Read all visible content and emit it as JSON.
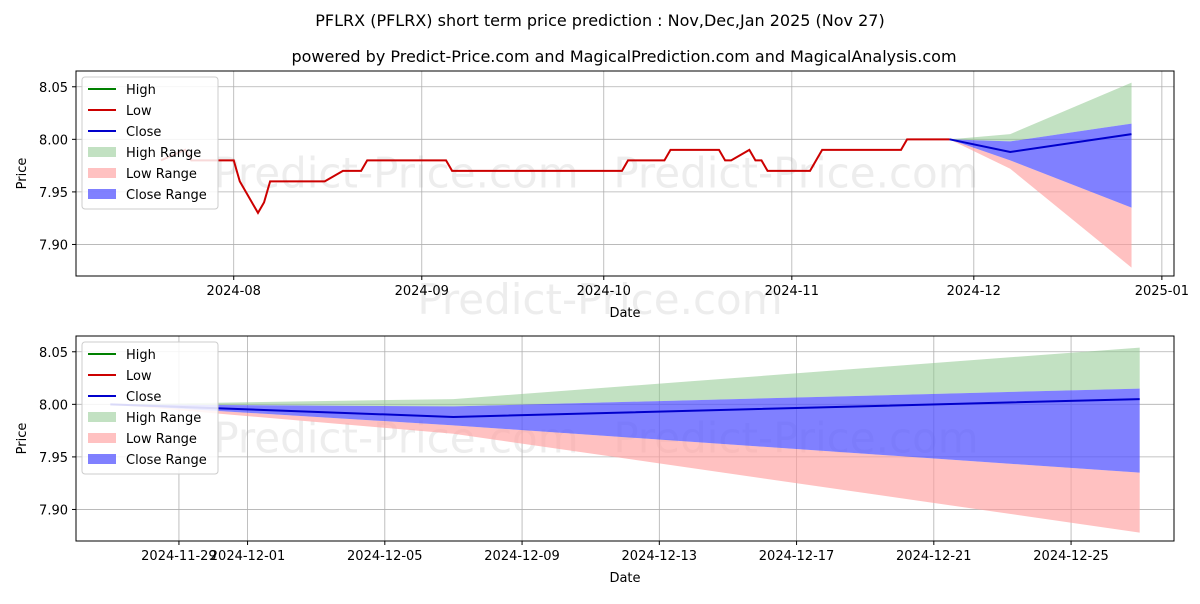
{
  "title": "PFLRX (PFLRX) short term price prediction : Nov,Dec,Jan 2025 (Nov 27)",
  "subtitle": "powered by Predict-Price.com and MagicalPrediction.com and MagicalAnalysis.com",
  "watermark": "Predict-Price.com",
  "colors": {
    "high": "#008000",
    "low": "#cc0000",
    "close": "#0000cc",
    "high_range": "#8fc98f",
    "low_range": "#ff9f9f",
    "close_range": "#5555ff",
    "grid": "#b0b0b0"
  },
  "chart_data": [
    {
      "type": "line",
      "xlabel": "Date",
      "ylabel": "Price",
      "xlim": [
        "2024-07-06",
        "2025-01-03"
      ],
      "ylim": [
        7.87,
        8.065
      ],
      "grid": true,
      "legend_position": "top-left",
      "xticks": [
        "2024-08-01",
        "2024-09-01",
        "2024-10-01",
        "2024-11-01",
        "2024-12-01",
        "2025-01-01"
      ],
      "xtick_labels": [
        "2024-08",
        "2024-09",
        "2024-10",
        "2024-11",
        "2024-12",
        "2025-01"
      ],
      "yticks": [
        7.9,
        7.95,
        8.0,
        8.05
      ],
      "ytick_labels": [
        "7.90",
        "7.95",
        "8.00",
        "8.05"
      ],
      "legend": [
        "High",
        "Low",
        "Close",
        "High Range",
        "Low Range",
        "Close Range"
      ],
      "series": [
        {
          "name": "Low",
          "kind": "line",
          "x": [
            "2024-07-20",
            "2024-07-24",
            "2024-07-25",
            "2024-08-01",
            "2024-08-02",
            "2024-08-03",
            "2024-08-05",
            "2024-08-06",
            "2024-08-07",
            "2024-08-16",
            "2024-08-19",
            "2024-08-22",
            "2024-08-23",
            "2024-09-05",
            "2024-09-06",
            "2024-10-04",
            "2024-10-05",
            "2024-10-11",
            "2024-10-12",
            "2024-10-20",
            "2024-10-21",
            "2024-10-22",
            "2024-10-25",
            "2024-10-26",
            "2024-10-27",
            "2024-10-28",
            "2024-11-04",
            "2024-11-06",
            "2024-11-19",
            "2024-11-20",
            "2024-11-27"
          ],
          "y": [
            7.98,
            7.99,
            7.98,
            7.98,
            7.96,
            7.95,
            7.93,
            7.94,
            7.96,
            7.96,
            7.97,
            7.97,
            7.98,
            7.98,
            7.97,
            7.97,
            7.98,
            7.98,
            7.99,
            7.99,
            7.98,
            7.98,
            7.99,
            7.98,
            7.98,
            7.97,
            7.97,
            7.99,
            7.99,
            8.0,
            8.0
          ]
        },
        {
          "name": "Close",
          "kind": "line",
          "x": [
            "2024-11-27",
            "2024-12-07",
            "2024-12-27"
          ],
          "y": [
            8.0,
            7.988,
            8.005
          ]
        },
        {
          "name": "High Range",
          "kind": "band",
          "x": [
            "2024-11-27",
            "2024-12-07",
            "2024-12-27"
          ],
          "upper": [
            8.0,
            8.005,
            8.054
          ],
          "lower": [
            8.0,
            7.998,
            8.015
          ]
        },
        {
          "name": "Low Range",
          "kind": "band",
          "x": [
            "2024-11-27",
            "2024-12-07",
            "2024-12-27"
          ],
          "upper": [
            8.0,
            7.98,
            7.935
          ],
          "lower": [
            8.0,
            7.972,
            7.878
          ]
        },
        {
          "name": "Close Range",
          "kind": "band",
          "x": [
            "2024-11-27",
            "2024-12-07",
            "2024-12-27"
          ],
          "upper": [
            8.0,
            7.998,
            8.015
          ],
          "lower": [
            8.0,
            7.98,
            7.935
          ]
        }
      ]
    },
    {
      "type": "line",
      "xlabel": "Date",
      "ylabel": "Price",
      "xlim": [
        "2024-11-26",
        "2024-12-28"
      ],
      "ylim": [
        7.87,
        8.065
      ],
      "grid": true,
      "legend_position": "top-left",
      "xticks": [
        "2024-11-29",
        "2024-12-01",
        "2024-12-05",
        "2024-12-09",
        "2024-12-13",
        "2024-12-17",
        "2024-12-21",
        "2024-12-25"
      ],
      "xtick_labels": [
        "2024-11-29",
        "2024-12-01",
        "2024-12-05",
        "2024-12-09",
        "2024-12-13",
        "2024-12-17",
        "2024-12-21",
        "2024-12-25"
      ],
      "yticks": [
        7.9,
        7.95,
        8.0,
        8.05
      ],
      "ytick_labels": [
        "7.90",
        "7.95",
        "8.00",
        "8.05"
      ],
      "legend": [
        "High",
        "Low",
        "Close",
        "High Range",
        "Low Range",
        "Close Range"
      ],
      "series": [
        {
          "name": "Close",
          "kind": "line",
          "x": [
            "2024-11-27",
            "2024-12-07",
            "2024-12-27"
          ],
          "y": [
            8.0,
            7.988,
            8.005
          ]
        },
        {
          "name": "High Range",
          "kind": "band",
          "x": [
            "2024-11-27",
            "2024-12-07",
            "2024-12-27"
          ],
          "upper": [
            8.0,
            8.005,
            8.054
          ],
          "lower": [
            8.0,
            7.998,
            8.015
          ]
        },
        {
          "name": "Low Range",
          "kind": "band",
          "x": [
            "2024-11-27",
            "2024-12-07",
            "2024-12-27"
          ],
          "upper": [
            8.0,
            7.98,
            7.935
          ],
          "lower": [
            8.0,
            7.972,
            7.878
          ]
        },
        {
          "name": "Close Range",
          "kind": "band",
          "x": [
            "2024-11-27",
            "2024-12-07",
            "2024-12-27"
          ],
          "upper": [
            8.0,
            7.998,
            8.015
          ],
          "lower": [
            8.0,
            7.98,
            7.935
          ]
        }
      ]
    }
  ]
}
